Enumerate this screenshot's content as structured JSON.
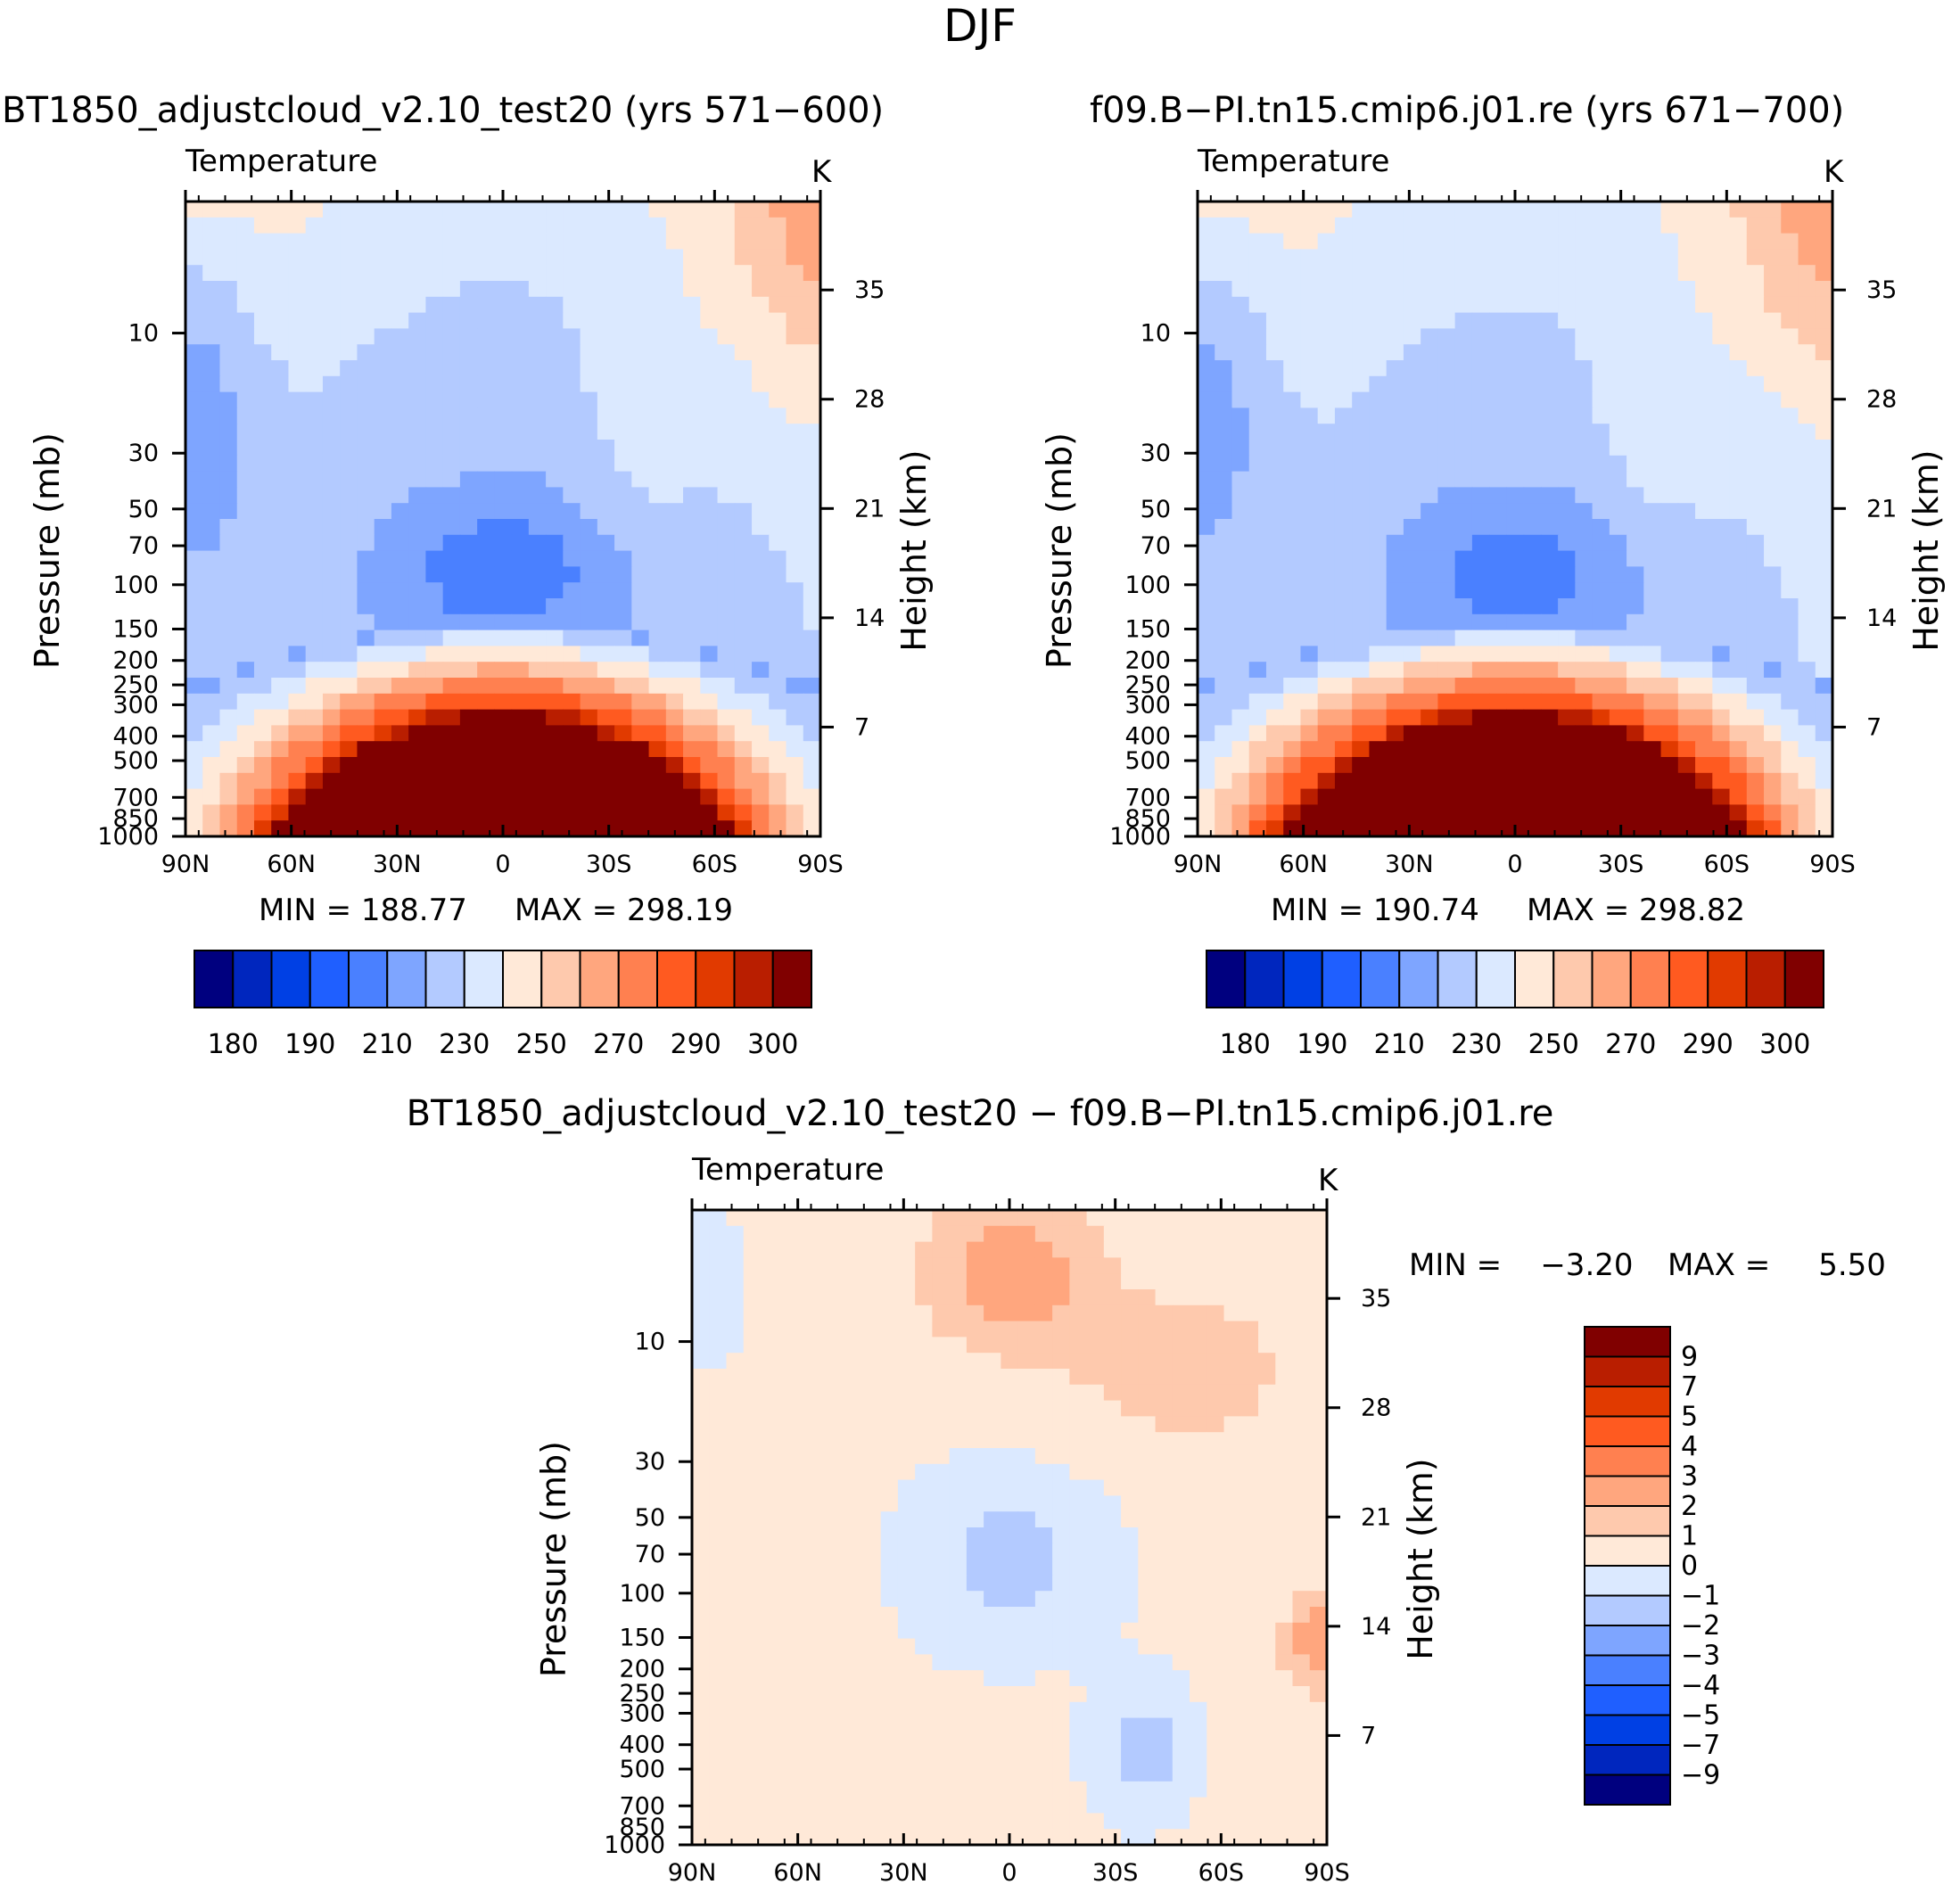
{
  "page": {
    "title": "DJF"
  },
  "palettes": {
    "abs": [
      "#00007f",
      "#0026be",
      "#0040e4",
      "#1f5fff",
      "#4a80ff",
      "#7ea5ff",
      "#b3caff",
      "#dbe9ff",
      "#ffe9d8",
      "#fec9ad",
      "#ffa67e",
      "#ff8050",
      "#ff5a20",
      "#e13a00",
      "#b91e00",
      "#800000"
    ],
    "diff": [
      "#00007f",
      "#0026be",
      "#0040e4",
      "#1f5fff",
      "#4a80ff",
      "#7ea5ff",
      "#b3caff",
      "#dbe9ff",
      "#ffe9d8",
      "#fec9ad",
      "#ffa67e",
      "#ff8050",
      "#ff5a20",
      "#e13a00",
      "#b91e00",
      "#800000"
    ]
  },
  "chart_data": [
    {
      "id": "panel1",
      "type": "contour",
      "title": "BT1850_adjustcloud_v2.10_test20 (yrs 571−600)",
      "variable": "Temperature",
      "units": "K",
      "ylabel": "Pressure (mb)",
      "ylabel_right": "Height (km)",
      "x_ticks": [
        "90N",
        "60N",
        "30N",
        "0",
        "30S",
        "60S",
        "90S"
      ],
      "pressure_ticks": [
        10,
        30,
        50,
        70,
        100,
        150,
        200,
        250,
        300,
        400,
        500,
        700,
        850,
        1000
      ],
      "pressure_range": [
        3,
        1000
      ],
      "height_ticks": [
        7,
        14,
        21,
        28,
        35
      ],
      "min_label": "MIN =  188.77",
      "max_label": "MAX =  298.19",
      "colorbar_labels": [
        "180",
        "190",
        "210",
        "230",
        "250",
        "270",
        "290",
        "300"
      ],
      "levels": [
        180,
        185,
        190,
        200,
        210,
        220,
        230,
        240,
        250,
        260,
        270,
        280,
        290,
        295,
        300
      ]
    },
    {
      "id": "panel2",
      "type": "contour",
      "title": "f09.B−PI.tn15.cmip6.j01.re (yrs 671−700)",
      "variable": "Temperature",
      "units": "K",
      "ylabel": "Pressure (mb)",
      "ylabel_right": "Height (km)",
      "x_ticks": [
        "90N",
        "60N",
        "30N",
        "0",
        "30S",
        "60S",
        "90S"
      ],
      "pressure_ticks": [
        10,
        30,
        50,
        70,
        100,
        150,
        200,
        250,
        300,
        400,
        500,
        700,
        850,
        1000
      ],
      "pressure_range": [
        3,
        1000
      ],
      "height_ticks": [
        7,
        14,
        21,
        28,
        35
      ],
      "min_label": "MIN =  190.74",
      "max_label": "MAX =  298.82",
      "colorbar_labels": [
        "180",
        "190",
        "210",
        "230",
        "250",
        "270",
        "290",
        "300"
      ],
      "levels": [
        180,
        185,
        190,
        200,
        210,
        220,
        230,
        240,
        250,
        260,
        270,
        280,
        290,
        295,
        300
      ]
    },
    {
      "id": "panel3",
      "type": "contour",
      "title": "BT1850_adjustcloud_v2.10_test20 − f09.B−PI.tn15.cmip6.j01.re",
      "variable": "Temperature",
      "units": "K",
      "ylabel": "Pressure (mb)",
      "ylabel_right": "Height (km)",
      "x_ticks": [
        "90N",
        "60N",
        "30N",
        "0",
        "30S",
        "60S",
        "90S"
      ],
      "pressure_ticks": [
        10,
        30,
        50,
        70,
        100,
        150,
        200,
        250,
        300,
        400,
        500,
        700,
        850,
        1000
      ],
      "pressure_range": [
        3,
        1000
      ],
      "height_ticks": [
        7,
        14,
        21,
        28,
        35
      ],
      "min_label": "MIN =    −3.20",
      "max_label": "MAX =     5.50",
      "colorbar_labels": [
        "9",
        "7",
        "5",
        "4",
        "3",
        "2",
        "1",
        "0",
        "−1",
        "−2",
        "−3",
        "−4",
        "−5",
        "−7",
        "−9"
      ],
      "levels": [
        -9,
        -7,
        -5,
        -4,
        -3,
        -2,
        -1,
        0,
        1,
        2,
        3,
        4,
        5,
        7,
        9
      ]
    }
  ]
}
